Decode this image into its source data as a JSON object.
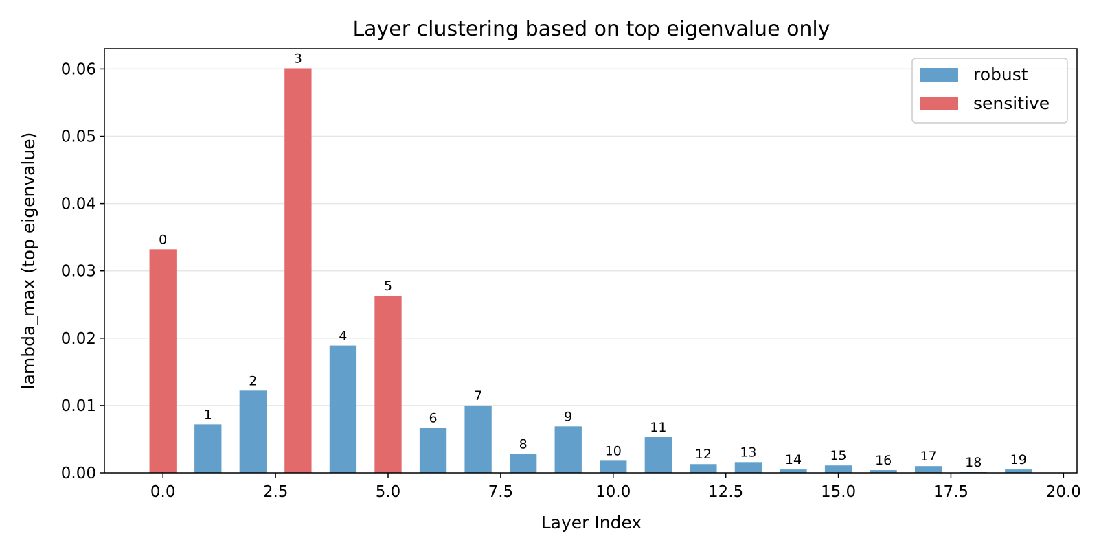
{
  "chart_data": {
    "type": "bar",
    "title": "Layer clustering based on top eigenvalue only",
    "xlabel": "Layer Index",
    "ylabel": "lambda_max (top eigenvalue)",
    "xlim": [
      -1.3,
      20.3
    ],
    "ylim": [
      0,
      0.063
    ],
    "xticks": [
      0.0,
      2.5,
      5.0,
      7.5,
      10.0,
      12.5,
      15.0,
      17.5,
      20.0
    ],
    "xtick_labels": [
      "0.0",
      "2.5",
      "5.0",
      "7.5",
      "10.0",
      "12.5",
      "15.0",
      "17.5",
      "20.0"
    ],
    "yticks": [
      0.0,
      0.01,
      0.02,
      0.03,
      0.04,
      0.05,
      0.06
    ],
    "ytick_labels": [
      "0.00",
      "0.01",
      "0.02",
      "0.03",
      "0.04",
      "0.05",
      "0.06"
    ],
    "grid": "horizontal",
    "legend_position": "top-right",
    "colors": {
      "robust": "#62a0cb",
      "sensitive": "#e36a6b"
    },
    "series": [
      {
        "name": "robust",
        "color": "#62a0cb"
      },
      {
        "name": "sensitive",
        "color": "#e36a6b"
      }
    ],
    "bars": [
      {
        "x": 0,
        "label": "0",
        "value": 0.0332,
        "cluster": "sensitive"
      },
      {
        "x": 1,
        "label": "1",
        "value": 0.0072,
        "cluster": "robust"
      },
      {
        "x": 2,
        "label": "2",
        "value": 0.0122,
        "cluster": "robust"
      },
      {
        "x": 3,
        "label": "3",
        "value": 0.0601,
        "cluster": "sensitive"
      },
      {
        "x": 4,
        "label": "4",
        "value": 0.0189,
        "cluster": "robust"
      },
      {
        "x": 5,
        "label": "5",
        "value": 0.0263,
        "cluster": "sensitive"
      },
      {
        "x": 6,
        "label": "6",
        "value": 0.0067,
        "cluster": "robust"
      },
      {
        "x": 7,
        "label": "7",
        "value": 0.01,
        "cluster": "robust"
      },
      {
        "x": 8,
        "label": "8",
        "value": 0.0028,
        "cluster": "robust"
      },
      {
        "x": 9,
        "label": "9",
        "value": 0.0069,
        "cluster": "robust"
      },
      {
        "x": 10,
        "label": "10",
        "value": 0.0018,
        "cluster": "robust"
      },
      {
        "x": 11,
        "label": "11",
        "value": 0.0053,
        "cluster": "robust"
      },
      {
        "x": 12,
        "label": "12",
        "value": 0.0013,
        "cluster": "robust"
      },
      {
        "x": 13,
        "label": "13",
        "value": 0.0016,
        "cluster": "robust"
      },
      {
        "x": 14,
        "label": "14",
        "value": 0.0005,
        "cluster": "robust"
      },
      {
        "x": 15,
        "label": "15",
        "value": 0.0011,
        "cluster": "robust"
      },
      {
        "x": 16,
        "label": "16",
        "value": 0.0004,
        "cluster": "robust"
      },
      {
        "x": 17,
        "label": "17",
        "value": 0.001,
        "cluster": "robust"
      },
      {
        "x": 18,
        "label": "18",
        "value": 0.0001,
        "cluster": "robust"
      },
      {
        "x": 19,
        "label": "19",
        "value": 0.0005,
        "cluster": "robust"
      }
    ]
  }
}
